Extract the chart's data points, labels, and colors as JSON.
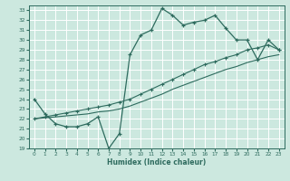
{
  "xlabel": "Humidex (Indice chaleur)",
  "bg_color": "#cce8df",
  "grid_color": "#ffffff",
  "line_color": "#2e6b5e",
  "xlim_min": -0.5,
  "xlim_max": 23.5,
  "ylim_min": 19,
  "ylim_max": 33.5,
  "xticks": [
    0,
    1,
    2,
    3,
    4,
    5,
    6,
    7,
    8,
    9,
    10,
    11,
    12,
    13,
    14,
    15,
    16,
    17,
    18,
    19,
    20,
    21,
    22,
    23
  ],
  "yticks": [
    19,
    20,
    21,
    22,
    23,
    24,
    25,
    26,
    27,
    28,
    29,
    30,
    31,
    32,
    33
  ],
  "curve1_x": [
    0,
    1,
    2,
    3,
    4,
    5,
    6,
    7,
    8,
    9,
    10,
    11,
    12,
    13,
    14,
    15,
    16,
    17,
    18,
    19,
    20,
    21,
    22,
    23
  ],
  "curve1_y": [
    24.0,
    22.5,
    21.5,
    21.2,
    21.2,
    21.5,
    22.2,
    19.0,
    20.5,
    28.5,
    30.5,
    31.0,
    33.2,
    32.5,
    31.5,
    31.8,
    32.0,
    32.5,
    31.2,
    30.0,
    30.0,
    28.0,
    30.0,
    29.0
  ],
  "curve2_x": [
    0,
    1,
    2,
    3,
    4,
    5,
    6,
    7,
    8,
    9,
    10,
    11,
    12,
    13,
    14,
    15,
    16,
    17,
    18,
    19,
    20,
    21,
    22,
    23
  ],
  "curve2_y": [
    22.0,
    22.2,
    22.4,
    22.6,
    22.8,
    23.0,
    23.2,
    23.4,
    23.7,
    24.0,
    24.5,
    25.0,
    25.5,
    26.0,
    26.5,
    27.0,
    27.5,
    27.8,
    28.2,
    28.5,
    29.0,
    29.2,
    29.5,
    29.0
  ],
  "curve3_x": [
    0,
    1,
    2,
    3,
    4,
    5,
    6,
    7,
    8,
    9,
    10,
    11,
    12,
    13,
    14,
    15,
    16,
    17,
    18,
    19,
    20,
    21,
    22,
    23
  ],
  "curve3_y": [
    22.0,
    22.1,
    22.2,
    22.3,
    22.4,
    22.5,
    22.7,
    22.8,
    23.0,
    23.3,
    23.7,
    24.1,
    24.5,
    25.0,
    25.4,
    25.8,
    26.2,
    26.6,
    27.0,
    27.3,
    27.7,
    28.0,
    28.3,
    28.5
  ]
}
